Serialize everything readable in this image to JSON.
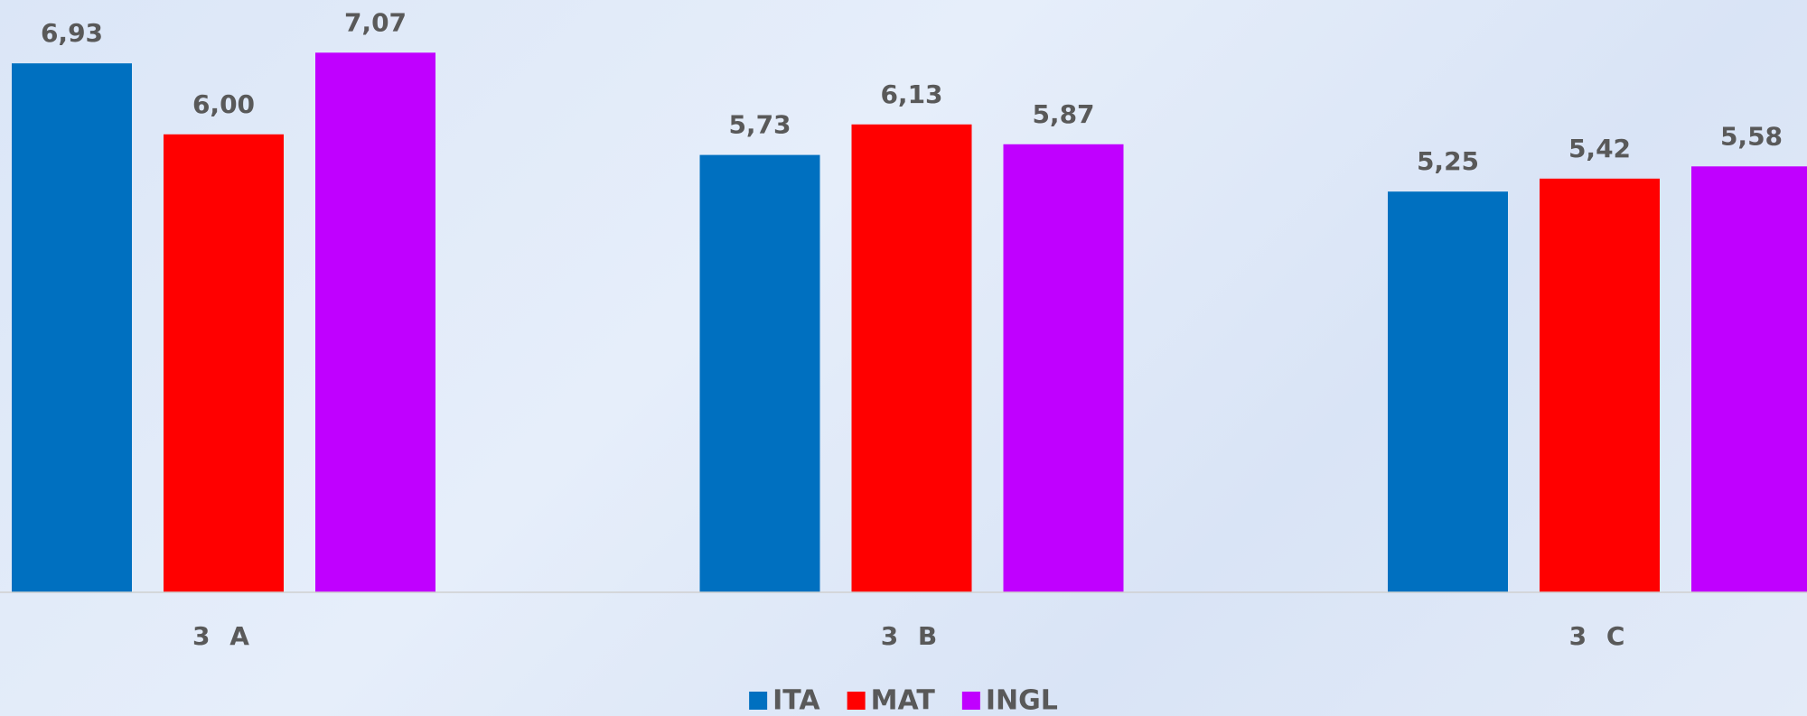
{
  "chart_data": {
    "type": "bar",
    "categories": [
      "3 A",
      "3 B",
      "3 C"
    ],
    "series": [
      {
        "name": "ITA",
        "color": "#0070c0",
        "values": [
          6.93,
          5.73,
          5.25
        ],
        "value_labels": [
          "6,93",
          "5,73",
          "5,25"
        ]
      },
      {
        "name": "MAT",
        "color": "#ff0000",
        "values": [
          6.0,
          6.13,
          5.42
        ],
        "value_labels": [
          "6,00",
          "6,13",
          "5,42"
        ]
      },
      {
        "name": "INGL",
        "color": "#c000ff",
        "values": [
          7.07,
          5.87,
          5.58
        ],
        "value_labels": [
          "7,07",
          "5,87",
          "5,58"
        ]
      }
    ],
    "ylim": [
      0,
      7.76
    ],
    "legend": "bottom"
  }
}
